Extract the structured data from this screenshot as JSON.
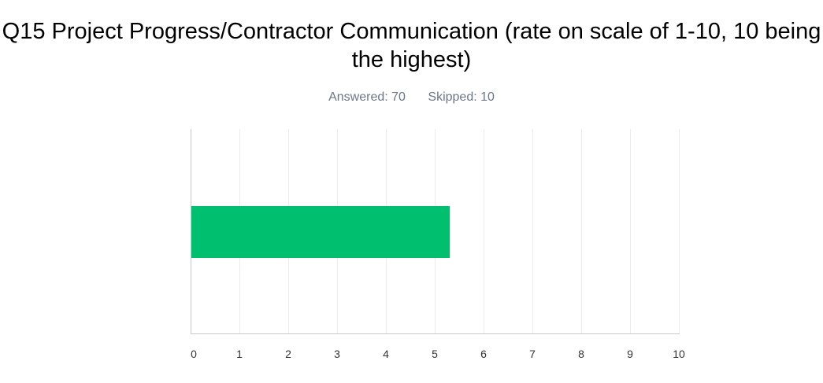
{
  "title": "Q15 Project Progress/Contractor Communication (rate on scale of 1-10, 10 being the highest)",
  "summary": {
    "answered": "Answered: 70",
    "skipped": "Skipped: 10"
  },
  "chart_data": {
    "type": "bar",
    "orientation": "horizontal",
    "categories": [
      ""
    ],
    "values": [
      5.31
    ],
    "xlim": [
      0,
      10
    ],
    "xticks": [
      "0",
      "1",
      "2",
      "3",
      "4",
      "5",
      "6",
      "7",
      "8",
      "9",
      "10"
    ],
    "grid": true,
    "legend": "none",
    "bar_color": "#00bf6f",
    "grid_color": "#ececec",
    "axis_color": "#c8c8c8"
  }
}
